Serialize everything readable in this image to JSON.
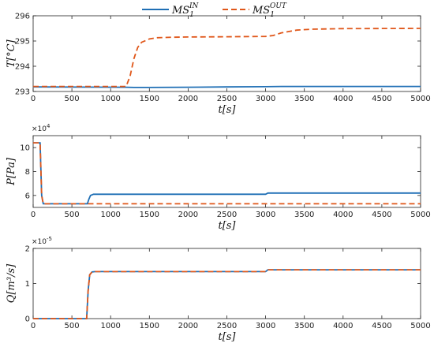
{
  "legend": {
    "in_label": "MS",
    "in_sub": "1",
    "in_sup": "IN",
    "out_label": "MS",
    "out_sub": "1",
    "out_sup": "OUT"
  },
  "colors": {
    "in": "#1f6fb5",
    "out": "#e0571a"
  },
  "chart_data": [
    {
      "type": "line",
      "ylabel": "T[°C]",
      "xlabel": "t[s]",
      "xlim": [
        0,
        5000
      ],
      "ylim": [
        293,
        296
      ],
      "xticks": [
        0,
        500,
        1000,
        1500,
        2000,
        2500,
        3000,
        3500,
        4000,
        4500,
        5000
      ],
      "yticks": [
        293,
        294,
        295,
        296
      ],
      "exponent": "",
      "series": [
        {
          "name": "MS1 IN",
          "style": "solid",
          "x": [
            0,
            1200,
            1300,
            1500,
            2000,
            2500,
            3000,
            3200,
            4000,
            5000
          ],
          "y": [
            293.18,
            293.17,
            293.16,
            293.16,
            293.17,
            293.18,
            293.19,
            293.2,
            293.2,
            293.2
          ]
        },
        {
          "name": "MS1 OUT",
          "style": "dashed",
          "x": [
            0,
            1200,
            1250,
            1300,
            1350,
            1400,
            1500,
            1600,
            1800,
            2000,
            2500,
            3000,
            3100,
            3200,
            3400,
            3600,
            4000,
            5000
          ],
          "y": [
            293.2,
            293.2,
            293.6,
            294.3,
            294.75,
            294.95,
            295.08,
            295.13,
            295.15,
            295.16,
            295.17,
            295.18,
            295.22,
            295.32,
            295.43,
            295.47,
            295.49,
            295.5
          ]
        }
      ]
    },
    {
      "type": "line",
      "ylabel": "P[Pa]",
      "xlabel": "t[s]",
      "xlim": [
        0,
        5000
      ],
      "ylim": [
        5,
        11
      ],
      "xticks": [
        0,
        500,
        1000,
        1500,
        2000,
        2500,
        3000,
        3500,
        4000,
        4500,
        5000
      ],
      "yticks": [
        6,
        8,
        10
      ],
      "exponent": "×10^4",
      "series": [
        {
          "name": "MS1 IN",
          "style": "solid",
          "x": [
            0,
            90,
            110,
            130,
            700,
            720,
            740,
            780,
            1000,
            2000,
            3000,
            3030,
            4000,
            5000
          ],
          "y": [
            10.4,
            10.4,
            6.0,
            5.3,
            5.3,
            5.7,
            6.0,
            6.1,
            6.1,
            6.1,
            6.1,
            6.2,
            6.2,
            6.2
          ]
        },
        {
          "name": "MS1 OUT",
          "style": "dashed",
          "x": [
            0,
            90,
            110,
            130,
            5000
          ],
          "y": [
            10.4,
            10.4,
            6.0,
            5.3,
            5.3
          ]
        }
      ]
    },
    {
      "type": "line",
      "ylabel": "Q[m³/s]",
      "xlabel": "t[s]",
      "xlim": [
        0,
        5000
      ],
      "ylim": [
        0,
        2
      ],
      "xticks": [
        0,
        500,
        1000,
        1500,
        2000,
        2500,
        3000,
        3500,
        4000,
        4500,
        5000
      ],
      "yticks": [
        0,
        1,
        2
      ],
      "exponent": "×10^-5",
      "series": [
        {
          "name": "MS1 IN",
          "style": "solid",
          "x": [
            0,
            690,
            710,
            730,
            760,
            800,
            1000,
            2000,
            3000,
            3030,
            4000,
            5000
          ],
          "y": [
            0,
            0,
            0.8,
            1.25,
            1.33,
            1.34,
            1.34,
            1.34,
            1.34,
            1.39,
            1.39,
            1.39
          ]
        },
        {
          "name": "MS1 OUT",
          "style": "dashed",
          "x": [
            0,
            690,
            710,
            730,
            760,
            800,
            1000,
            2000,
            3000,
            3030,
            4000,
            5000
          ],
          "y": [
            0,
            0,
            0.8,
            1.25,
            1.33,
            1.34,
            1.34,
            1.34,
            1.34,
            1.39,
            1.39,
            1.39
          ]
        }
      ]
    }
  ]
}
